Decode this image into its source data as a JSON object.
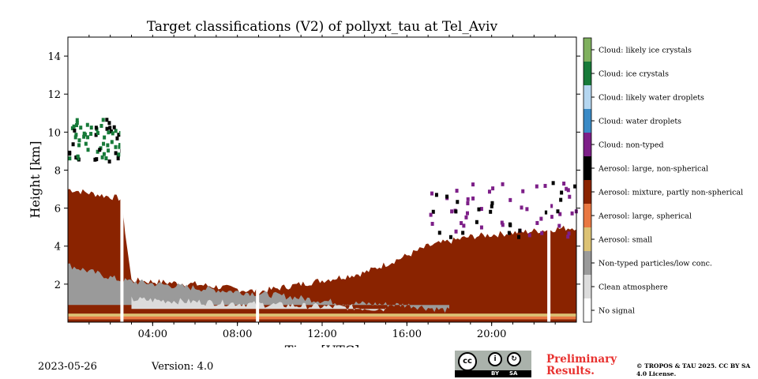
{
  "chart_data": {
    "type": "heatmap",
    "title": "Target classifications (V2) of pollyxt_tau at Tel_Aviv",
    "xlabel": "Time [UTC]",
    "ylabel": "Height [km]",
    "xlim": [
      0,
      24
    ],
    "ylim": [
      0,
      15
    ],
    "x_ticks": [
      4,
      8,
      12,
      16,
      20
    ],
    "x_tick_labels": [
      "04:00",
      "08:00",
      "12:00",
      "16:00",
      "20:00"
    ],
    "y_ticks": [
      2,
      4,
      6,
      8,
      10,
      12,
      14
    ],
    "y_tick_labels": [
      "2",
      "4",
      "6",
      "8",
      "10",
      "12",
      "14"
    ],
    "colorbar": [
      {
        "label": "Cloud: likely ice crystals",
        "color": "#7fb05e"
      },
      {
        "label": "Cloud: ice crystals",
        "color": "#177a39"
      },
      {
        "label": "Cloud: likely water droplets",
        "color": "#b4d6f0"
      },
      {
        "label": "Cloud: water droplets",
        "color": "#3a8ac6"
      },
      {
        "label": "Cloud: non-typed",
        "color": "#7d1f88"
      },
      {
        "label": "Aerosol: large, non-spherical",
        "color": "#000000"
      },
      {
        "label": "Aerosol: mixture, partly non-spherical",
        "color": "#8a2300"
      },
      {
        "label": "Aerosol: large, spherical",
        "color": "#e97842"
      },
      {
        "label": "Aerosol: small",
        "color": "#dcc274"
      },
      {
        "label": "Non-typed particles/low conc.",
        "color": "#9a9a9a"
      },
      {
        "label": "Clean atmosphere",
        "color": "#dcdcdc"
      },
      {
        "label": "No signal",
        "color": "#ffffff"
      }
    ],
    "layers": [
      {
        "class": "Aerosol: mixture, partly non-spherical",
        "base_km": 0.3,
        "top_by_hour": [
          [
            0,
            7.0
          ],
          [
            2.5,
            6.5
          ],
          [
            3,
            2.2
          ],
          [
            6,
            2.0
          ],
          [
            9,
            1.6
          ],
          [
            12,
            2.2
          ],
          [
            14,
            2.6
          ],
          [
            16,
            3.5
          ],
          [
            17,
            4.0
          ],
          [
            19,
            4.5
          ],
          [
            22,
            4.8
          ],
          [
            24,
            5.0
          ]
        ]
      },
      {
        "class": "Non-typed particles/low conc.",
        "base_km": 0.9,
        "top_by_hour": [
          [
            0,
            3.0
          ],
          [
            2.5,
            2.2
          ],
          [
            6,
            1.8
          ],
          [
            10,
            1.4
          ],
          [
            13,
            1.0
          ],
          [
            16,
            0.9
          ],
          [
            18,
            0.6
          ]
        ]
      },
      {
        "class": "Clean atmosphere",
        "base_km": 0.7,
        "top_by_hour": [
          [
            3,
            1.2
          ],
          [
            10,
            0.9
          ],
          [
            15,
            0.7
          ]
        ]
      },
      {
        "class": "Cloud: ice crystals",
        "time_utc": [
          0,
          2.5
        ],
        "height_km": [
          8.5,
          10.8
        ]
      },
      {
        "class": "Cloud: non-typed",
        "time_utc": [
          17,
          24
        ],
        "height_km": [
          4.5,
          7.5
        ]
      }
    ],
    "gaps_utc": [
      2.55,
      8.95,
      22.7
    ]
  },
  "footer": {
    "date": "2023-05-26",
    "version": "Version: 4.0",
    "preliminary": "Preliminary Results.",
    "copyright": "© TROPOS & TAU 2025. CC BY SA 4.0 License.",
    "license_badge": {
      "cc": "cc",
      "by": "BY",
      "sa": "SA"
    }
  }
}
